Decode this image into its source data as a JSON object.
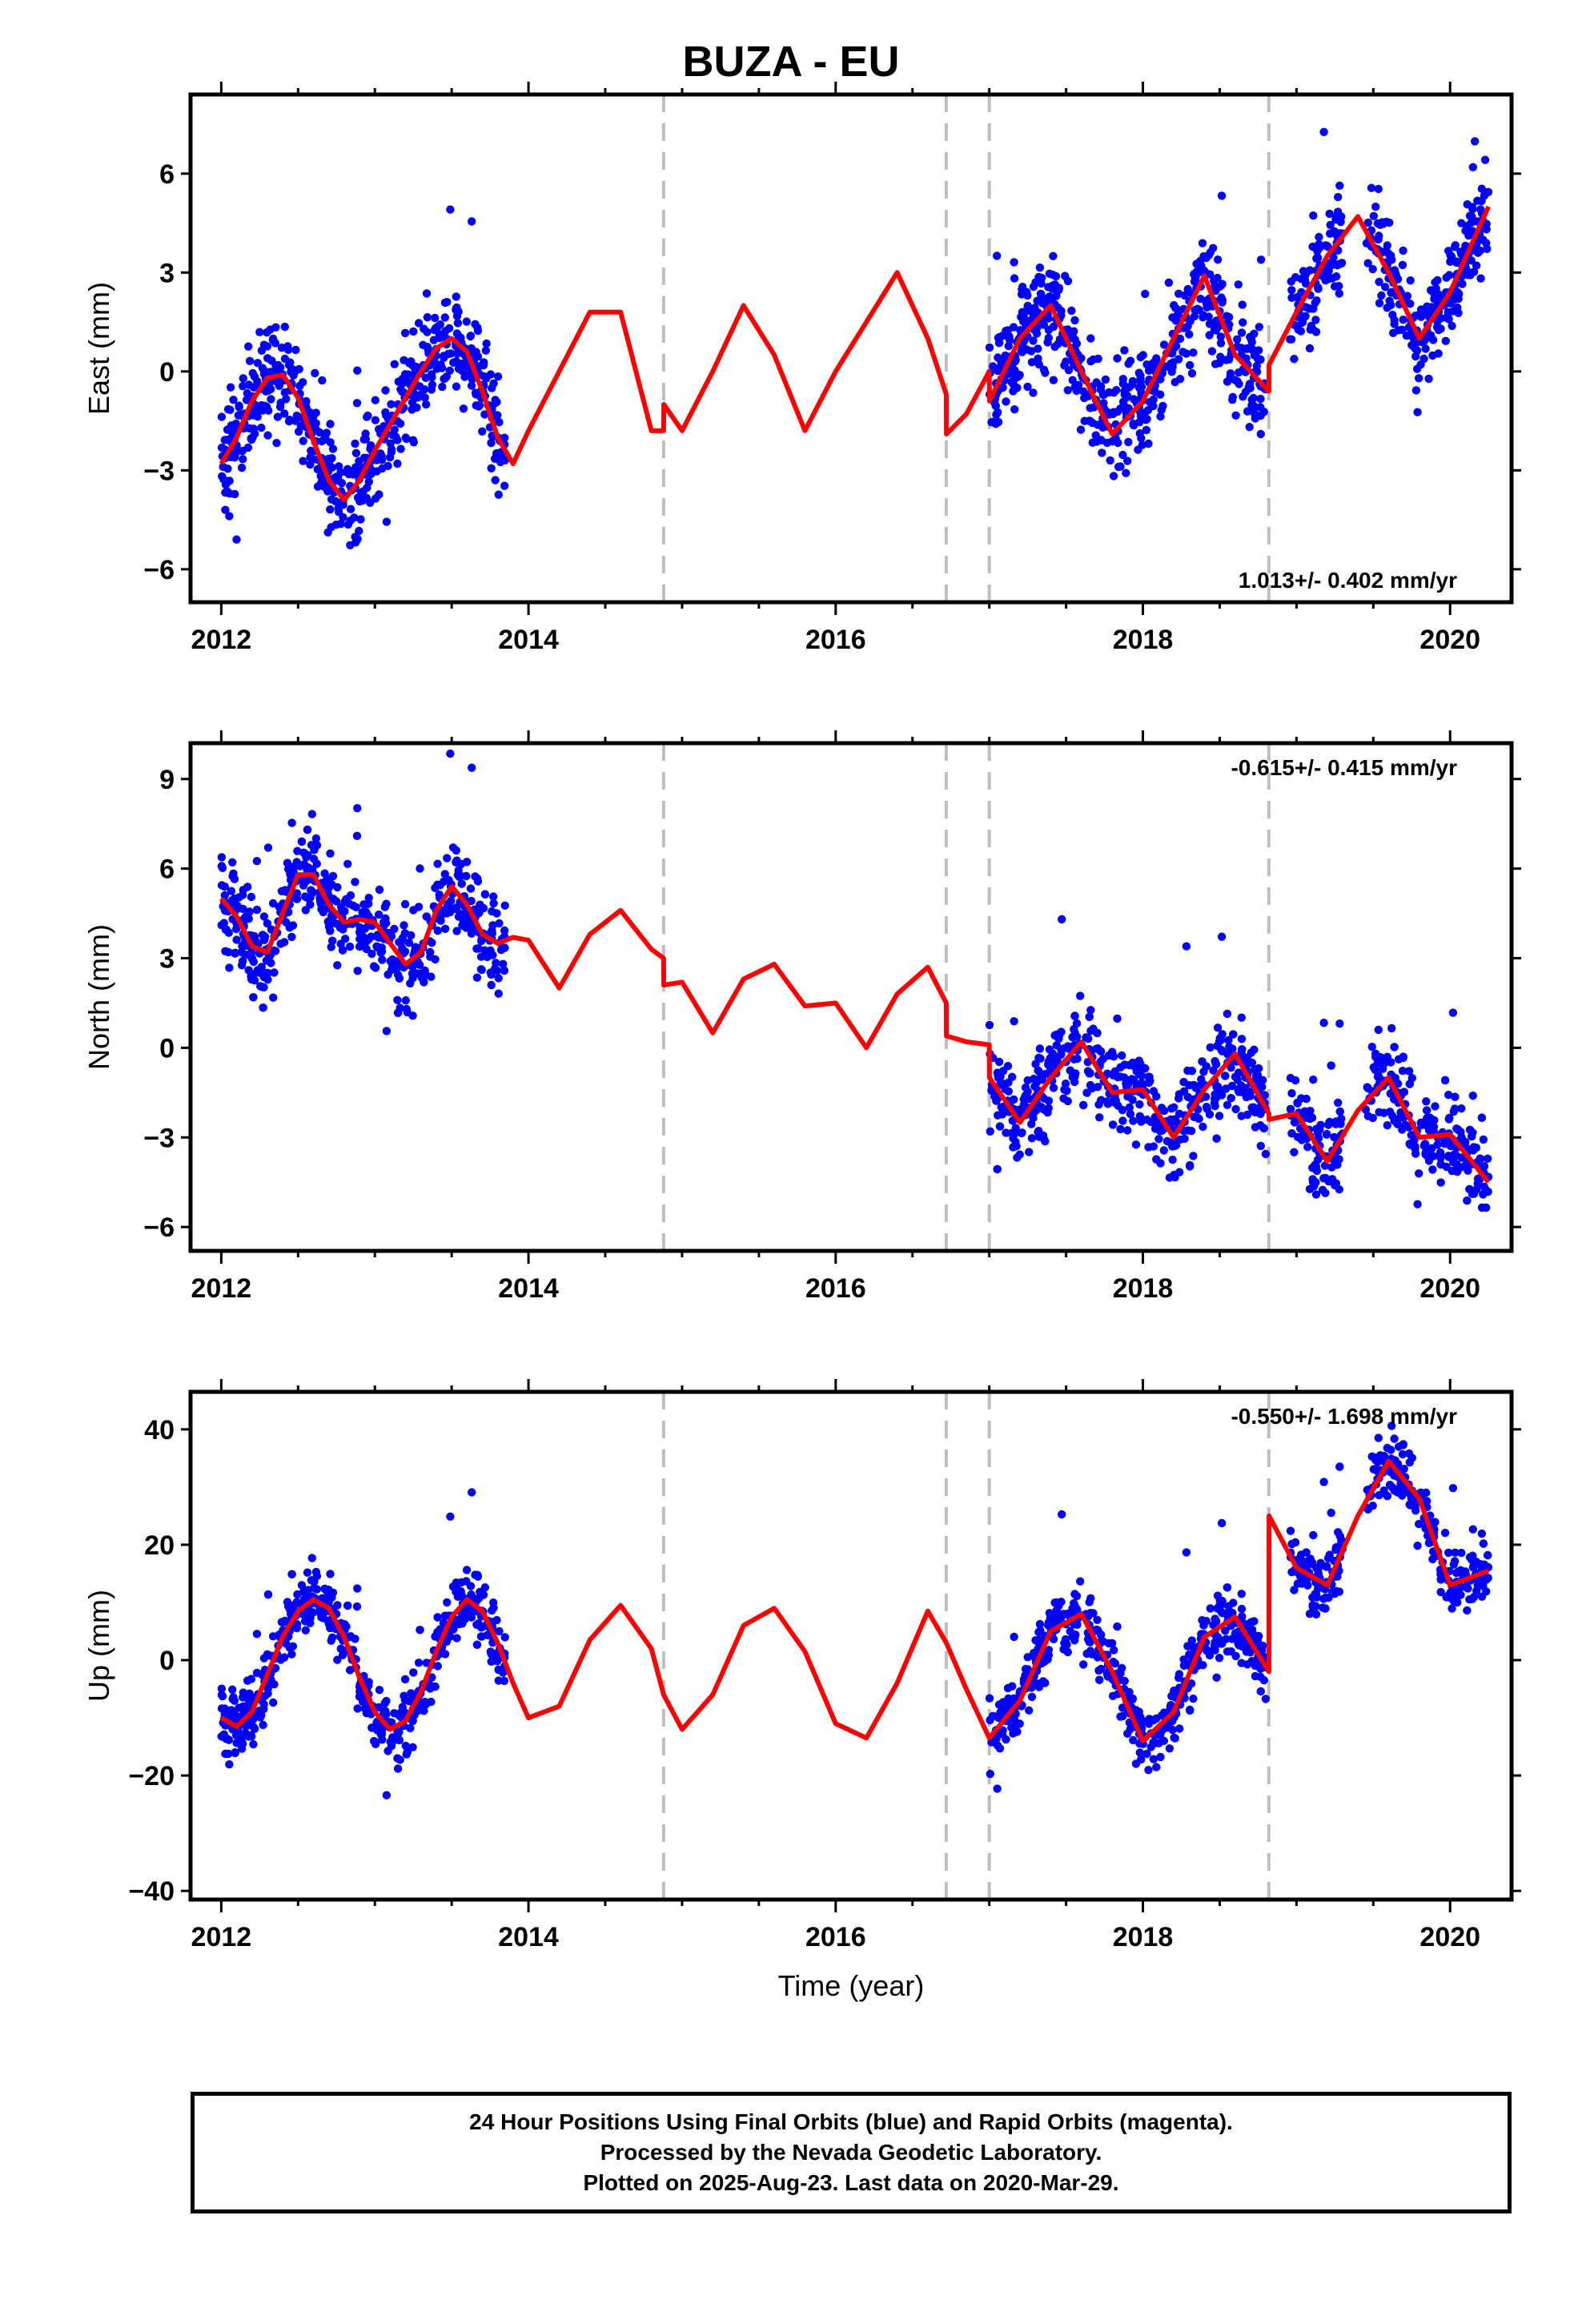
{
  "header": {
    "title": "BUZA - EU"
  },
  "xlabel": "Time (year)",
  "footer": {
    "lines": [
      "24 Hour Positions Using Final Orbits (blue) and Rapid Orbits (magenta).",
      "Processed by the Nevada Geodetic Laboratory.",
      "Plotted on 2025-Aug-23. Last data on 2020-Mar-29."
    ]
  },
  "colors": {
    "points": "#0000ff",
    "model": "#ff0000",
    "steps": "#bfbfbf",
    "frame": "#000000"
  },
  "chart_data": [
    {
      "type": "scatter",
      "component": "east",
      "ylabel": "East (mm)",
      "rate_label": "1.013+/- 0.402 mm/yr",
      "rate_position": "bottom-right",
      "xlim": [
        2011.8,
        2020.4
      ],
      "ylim": [
        -7.0,
        8.4
      ],
      "xticks": [
        2012,
        2014,
        2016,
        2018,
        2020
      ],
      "xtick_labels": [
        "2012",
        "2014",
        "2016",
        "2018",
        "2020"
      ],
      "yticks": [
        -6,
        -3,
        0,
        3,
        6
      ],
      "ytick_labels": [
        "−6",
        "−3",
        "0",
        "3",
        "6"
      ],
      "step_epochs": [
        2014.88,
        2016.72,
        2017.0,
        2018.82
      ],
      "data_segments": [
        [
          2012.0,
          2013.85
        ],
        [
          2017.0,
          2018.8
        ],
        [
          2018.95,
          2019.3
        ],
        [
          2019.45,
          2020.25
        ]
      ],
      "model": {
        "x": [
          2012.0,
          2012.1,
          2012.2,
          2012.3,
          2012.4,
          2012.5,
          2012.6,
          2012.7,
          2012.8,
          2012.9,
          2013.0,
          2013.1,
          2013.2,
          2013.3,
          2013.4,
          2013.5,
          2013.6,
          2013.7,
          2013.8,
          2013.9,
          2014.0,
          2014.2,
          2014.4,
          2014.6,
          2014.8,
          2014.88,
          2014.881,
          2015.0,
          2015.2,
          2015.4,
          2015.6,
          2015.8,
          2016.0,
          2016.2,
          2016.4,
          2016.6,
          2016.72,
          2016.721,
          2016.85,
          2017.0,
          2017.001,
          2017.2,
          2017.4,
          2017.6,
          2017.8,
          2018.0,
          2018.2,
          2018.4,
          2018.6,
          2018.82,
          2018.821,
          2019.0,
          2019.2,
          2019.4,
          2019.6,
          2019.8,
          2020.0,
          2020.25
        ],
        "y": [
          -2.8,
          -2.0,
          -0.9,
          -0.2,
          -0.1,
          -0.8,
          -2.1,
          -3.3,
          -3.9,
          -3.3,
          -2.4,
          -1.6,
          -0.8,
          0.0,
          0.7,
          1.0,
          0.6,
          -0.6,
          -2.0,
          -2.8,
          -1.8,
          0.0,
          1.8,
          1.8,
          -1.8,
          -1.8,
          -1.0,
          -1.8,
          0.0,
          2.0,
          0.5,
          -1.8,
          0.0,
          1.5,
          3.0,
          1.0,
          -0.7,
          -1.9,
          -1.3,
          0.0,
          -0.9,
          1.0,
          2.0,
          0.0,
          -1.9,
          -0.9,
          1.0,
          2.9,
          0.5,
          -0.6,
          0.2,
          1.8,
          3.5,
          4.7,
          3.0,
          1.0,
          2.4,
          5.0
        ]
      },
      "points": {
        "count": 1500,
        "noise_mm": 1.1,
        "outlier_max": 3.0
      }
    },
    {
      "type": "scatter",
      "component": "north",
      "ylabel": "North (mm)",
      "rate_label": "-0.615+/- 0.415 mm/yr",
      "rate_position": "top-right",
      "xlim": [
        2011.8,
        2020.4
      ],
      "ylim": [
        -6.8,
        10.2
      ],
      "xticks": [
        2012,
        2014,
        2016,
        2018,
        2020
      ],
      "xtick_labels": [
        "2012",
        "2014",
        "2016",
        "2018",
        "2020"
      ],
      "yticks": [
        -6,
        -3,
        0,
        3,
        6,
        9
      ],
      "ytick_labels": [
        "−6",
        "−3",
        "0",
        "3",
        "6",
        "9"
      ],
      "step_epochs": [
        2014.88,
        2016.72,
        2017.0,
        2018.82
      ],
      "data_segments": [
        [
          2012.0,
          2013.85
        ],
        [
          2017.0,
          2018.8
        ],
        [
          2018.95,
          2019.3
        ],
        [
          2019.45,
          2020.25
        ]
      ],
      "model": {
        "x": [
          2012.0,
          2012.1,
          2012.2,
          2012.3,
          2012.4,
          2012.5,
          2012.6,
          2012.7,
          2012.8,
          2012.9,
          2013.0,
          2013.1,
          2013.2,
          2013.3,
          2013.4,
          2013.5,
          2013.6,
          2013.7,
          2013.8,
          2013.9,
          2014.0,
          2014.2,
          2014.4,
          2014.6,
          2014.8,
          2014.88,
          2014.881,
          2015.0,
          2015.2,
          2015.4,
          2015.6,
          2015.8,
          2016.0,
          2016.2,
          2016.4,
          2016.6,
          2016.72,
          2016.721,
          2016.85,
          2017.0,
          2017.001,
          2017.2,
          2017.4,
          2017.6,
          2017.8,
          2018.0,
          2018.2,
          2018.4,
          2018.6,
          2018.82,
          2018.821,
          2019.0,
          2019.2,
          2019.4,
          2019.6,
          2019.8,
          2020.0,
          2020.25
        ],
        "y": [
          5.0,
          4.4,
          3.4,
          3.2,
          4.5,
          5.8,
          5.8,
          4.8,
          4.2,
          4.3,
          4.2,
          3.5,
          2.8,
          3.2,
          4.6,
          5.4,
          4.8,
          3.8,
          3.5,
          3.7,
          3.6,
          2.0,
          3.8,
          4.6,
          3.3,
          3.0,
          2.1,
          2.2,
          0.5,
          2.3,
          2.8,
          1.4,
          1.5,
          0.0,
          1.8,
          2.7,
          1.5,
          0.4,
          0.2,
          0.1,
          -1.0,
          -2.5,
          -1.0,
          0.2,
          -1.5,
          -1.4,
          -3.0,
          -1.4,
          -0.2,
          -2.2,
          -2.4,
          -2.2,
          -3.8,
          -2.1,
          -1.0,
          -3.0,
          -2.9,
          -4.5
        ]
      },
      "points": {
        "count": 1500,
        "noise_mm": 1.1,
        "outlier_max": 3.5
      }
    },
    {
      "type": "scatter",
      "component": "up",
      "ylabel": "Up (mm)",
      "rate_label": "-0.550+/- 1.698 mm/yr",
      "rate_position": "top-right",
      "xlim": [
        2011.8,
        2020.4
      ],
      "ylim": [
        -41.5,
        46.5
      ],
      "xticks": [
        2012,
        2014,
        2016,
        2018,
        2020
      ],
      "xtick_labels": [
        "2012",
        "2014",
        "2016",
        "2018",
        "2020"
      ],
      "yticks": [
        -40,
        -20,
        0,
        20,
        40
      ],
      "ytick_labels": [
        "−40",
        "−20",
        "0",
        "20",
        "40"
      ],
      "step_epochs": [
        2014.88,
        2016.72,
        2017.0,
        2018.82
      ],
      "data_segments": [
        [
          2012.0,
          2013.85
        ],
        [
          2017.0,
          2018.8
        ],
        [
          2018.95,
          2019.3
        ],
        [
          2019.45,
          2020.25
        ]
      ],
      "model": {
        "x": [
          2012.0,
          2012.1,
          2012.2,
          2012.3,
          2012.4,
          2012.5,
          2012.6,
          2012.7,
          2012.8,
          2012.9,
          2013.0,
          2013.1,
          2013.2,
          2013.3,
          2013.4,
          2013.5,
          2013.6,
          2013.7,
          2013.8,
          2013.9,
          2014.0,
          2014.2,
          2014.4,
          2014.6,
          2014.8,
          2014.88,
          2015.0,
          2015.2,
          2015.4,
          2015.6,
          2015.8,
          2016.0,
          2016.2,
          2016.4,
          2016.6,
          2016.72,
          2016.85,
          2017.0,
          2017.2,
          2017.4,
          2017.6,
          2017.8,
          2018.0,
          2018.2,
          2018.4,
          2018.6,
          2018.82,
          2018.821,
          2019.0,
          2019.2,
          2019.4,
          2019.6,
          2019.8,
          2020.0,
          2020.25
        ],
        "y": [
          -10.0,
          -11.5,
          -9.0,
          -2.5,
          4.0,
          8.5,
          10.5,
          9.0,
          4.0,
          -3.0,
          -9.0,
          -12.0,
          -10.5,
          -5.5,
          1.5,
          7.5,
          10.5,
          8.5,
          3.0,
          -4.0,
          -10.0,
          -8.0,
          3.5,
          9.5,
          2.0,
          -6.0,
          -12.0,
          -6.0,
          6.0,
          9.0,
          1.5,
          -11.0,
          -13.5,
          -4.0,
          8.5,
          3.0,
          -5.0,
          -13.5,
          -7.0,
          5.0,
          8.0,
          -2.0,
          -14.0,
          -9.0,
          4.0,
          7.5,
          -2.0,
          25.0,
          16.0,
          13.0,
          25.0,
          34.5,
          28.0,
          13.0,
          15.5
        ]
      },
      "points": {
        "count": 1400,
        "noise_mm": 4.0,
        "outlier_max": 14.0
      }
    }
  ]
}
